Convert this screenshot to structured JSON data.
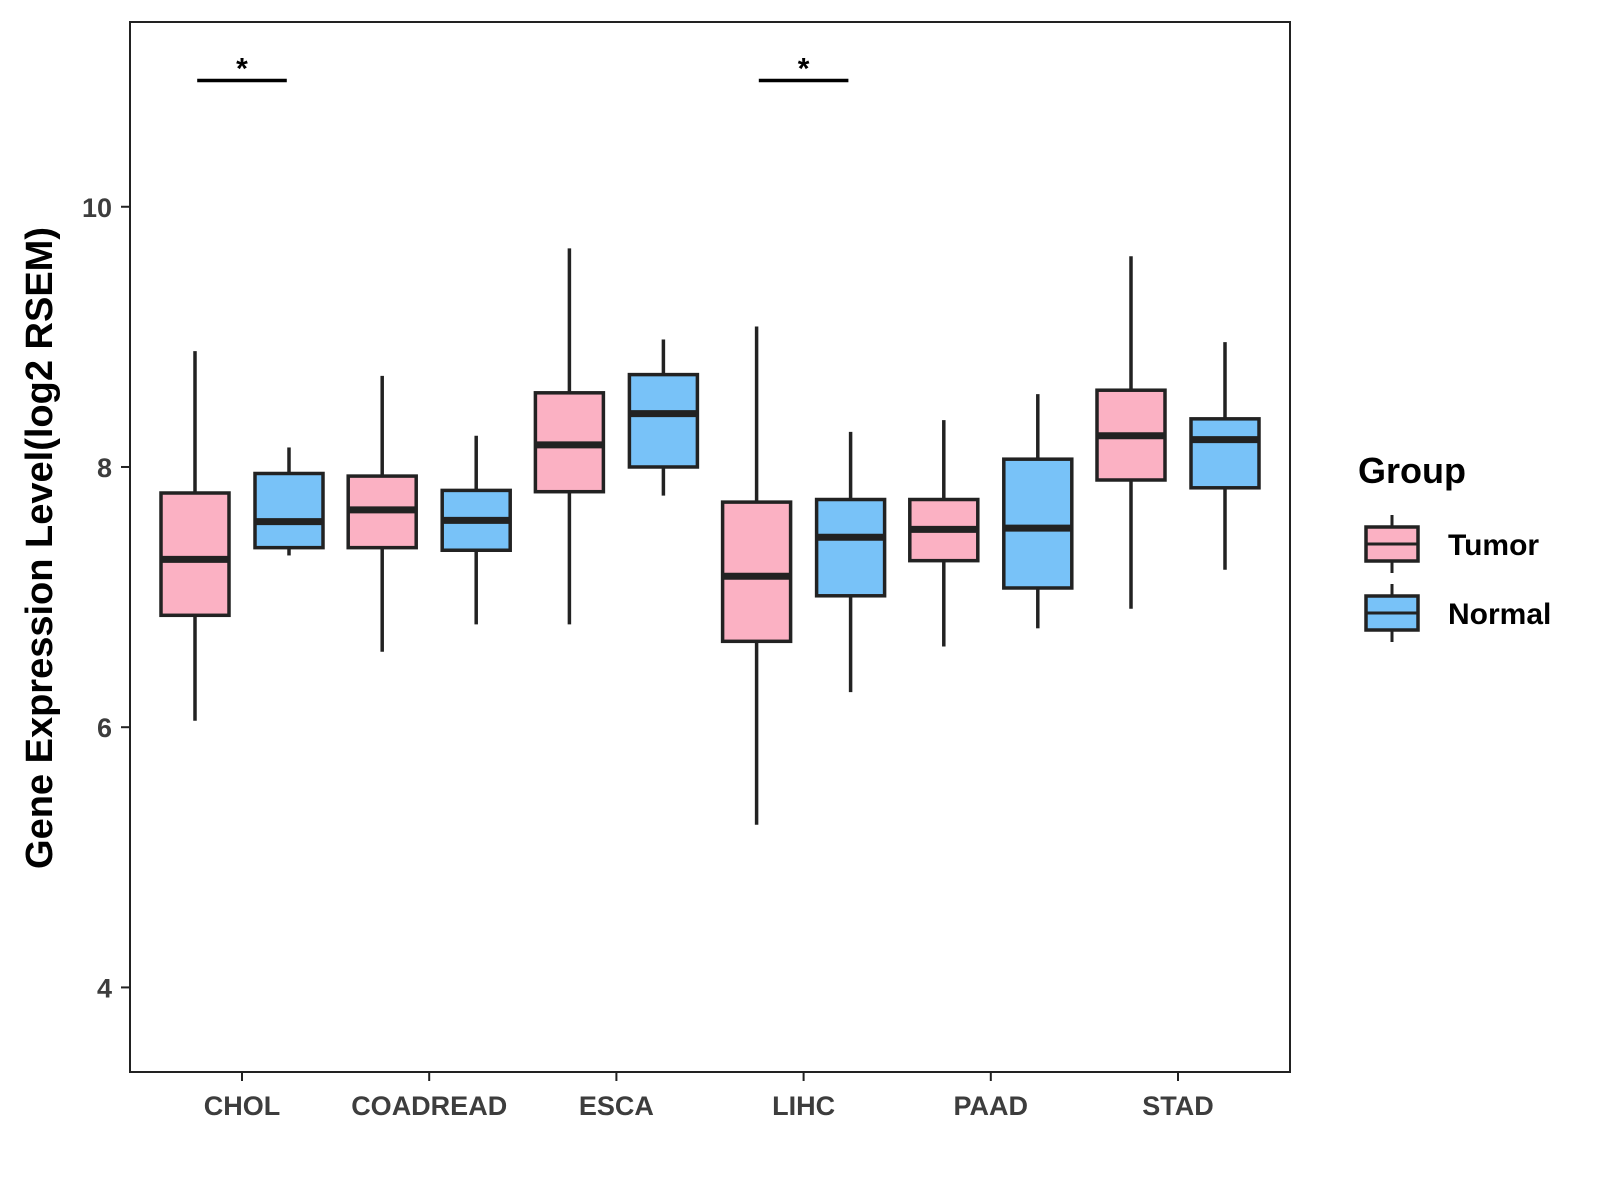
{
  "chart_data": {
    "type": "boxplot",
    "title": "",
    "xlabel": "",
    "ylabel": "Gene Expression Level(log2 RSEM)",
    "ylim": [
      3.35,
      11.42
    ],
    "yticks": [
      4,
      6,
      8,
      10
    ],
    "categories": [
      "CHOL",
      "COADREAD",
      "ESCA",
      "LIHC",
      "PAAD",
      "STAD"
    ],
    "legend": {
      "title": "Group",
      "position": "right",
      "entries": [
        {
          "name": "Tumor",
          "color": "#FBB1C3"
        },
        {
          "name": "Normal",
          "color": "#78C2F8"
        }
      ]
    },
    "series": [
      {
        "name": "Tumor",
        "color": "#FBB1C3",
        "boxes": [
          {
            "min": 6.05,
            "q1": 6.86,
            "median": 7.29,
            "q3": 7.8,
            "max": 8.89
          },
          {
            "min": 6.58,
            "q1": 7.38,
            "median": 7.67,
            "q3": 7.93,
            "max": 8.7
          },
          {
            "min": 6.79,
            "q1": 7.81,
            "median": 8.17,
            "q3": 8.57,
            "max": 9.68
          },
          {
            "min": 5.25,
            "q1": 6.66,
            "median": 7.16,
            "q3": 7.73,
            "max": 9.08
          },
          {
            "min": 6.62,
            "q1": 7.28,
            "median": 7.52,
            "q3": 7.75,
            "max": 8.36
          },
          {
            "min": 6.91,
            "q1": 7.9,
            "median": 8.24,
            "q3": 8.59,
            "max": 9.62
          }
        ]
      },
      {
        "name": "Normal",
        "color": "#78C2F8",
        "boxes": [
          {
            "min": 7.32,
            "q1": 7.38,
            "median": 7.58,
            "q3": 7.95,
            "max": 8.15
          },
          {
            "min": 6.79,
            "q1": 7.36,
            "median": 7.59,
            "q3": 7.82,
            "max": 8.24
          },
          {
            "min": 7.78,
            "q1": 8.0,
            "median": 8.41,
            "q3": 8.71,
            "max": 8.98
          },
          {
            "min": 6.27,
            "q1": 7.01,
            "median": 7.46,
            "q3": 7.75,
            "max": 8.27
          },
          {
            "min": 6.76,
            "q1": 7.07,
            "median": 7.53,
            "q3": 8.06,
            "max": 8.56
          },
          {
            "min": 7.21,
            "q1": 7.84,
            "median": 8.21,
            "q3": 8.37,
            "max": 8.96
          }
        ]
      }
    ],
    "annotations": [
      {
        "category": "CHOL",
        "label": "*",
        "y": 10.97
      },
      {
        "category": "LIHC",
        "label": "*",
        "y": 10.97
      }
    ]
  }
}
